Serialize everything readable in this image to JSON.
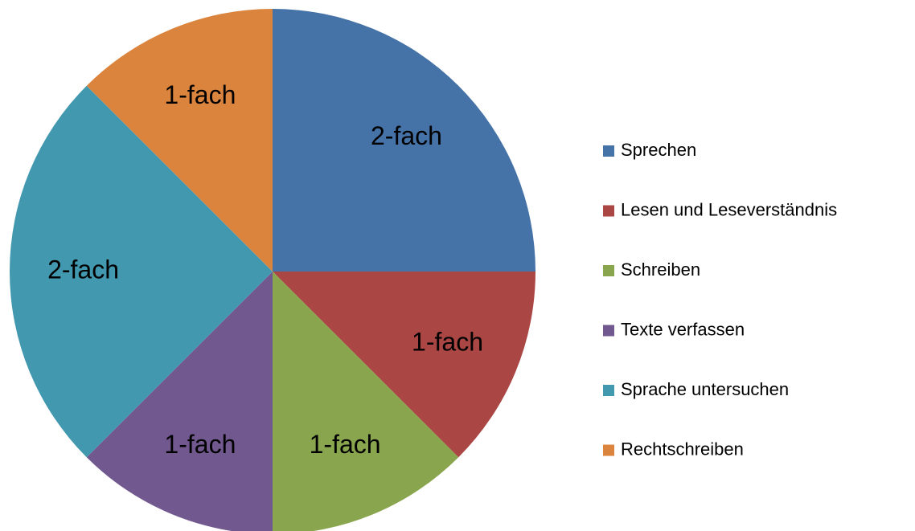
{
  "chart_data": {
    "type": "pie",
    "categories": [
      "Sprechen",
      "Lesen und Leseverständnis",
      "Schreiben",
      "Texte verfassen",
      "Sprache untersuchen",
      "Rechtschreiben"
    ],
    "values": [
      2,
      1,
      1,
      1,
      2,
      1
    ],
    "value_labels": [
      "2-fach",
      "1-fach",
      "1-fach",
      "1-fach",
      "2-fach",
      "1-fach"
    ],
    "colors": [
      "#4572a7",
      "#aa4643",
      "#89a54e",
      "#71588f",
      "#4198af",
      "#db843d"
    ],
    "legend": "right"
  }
}
